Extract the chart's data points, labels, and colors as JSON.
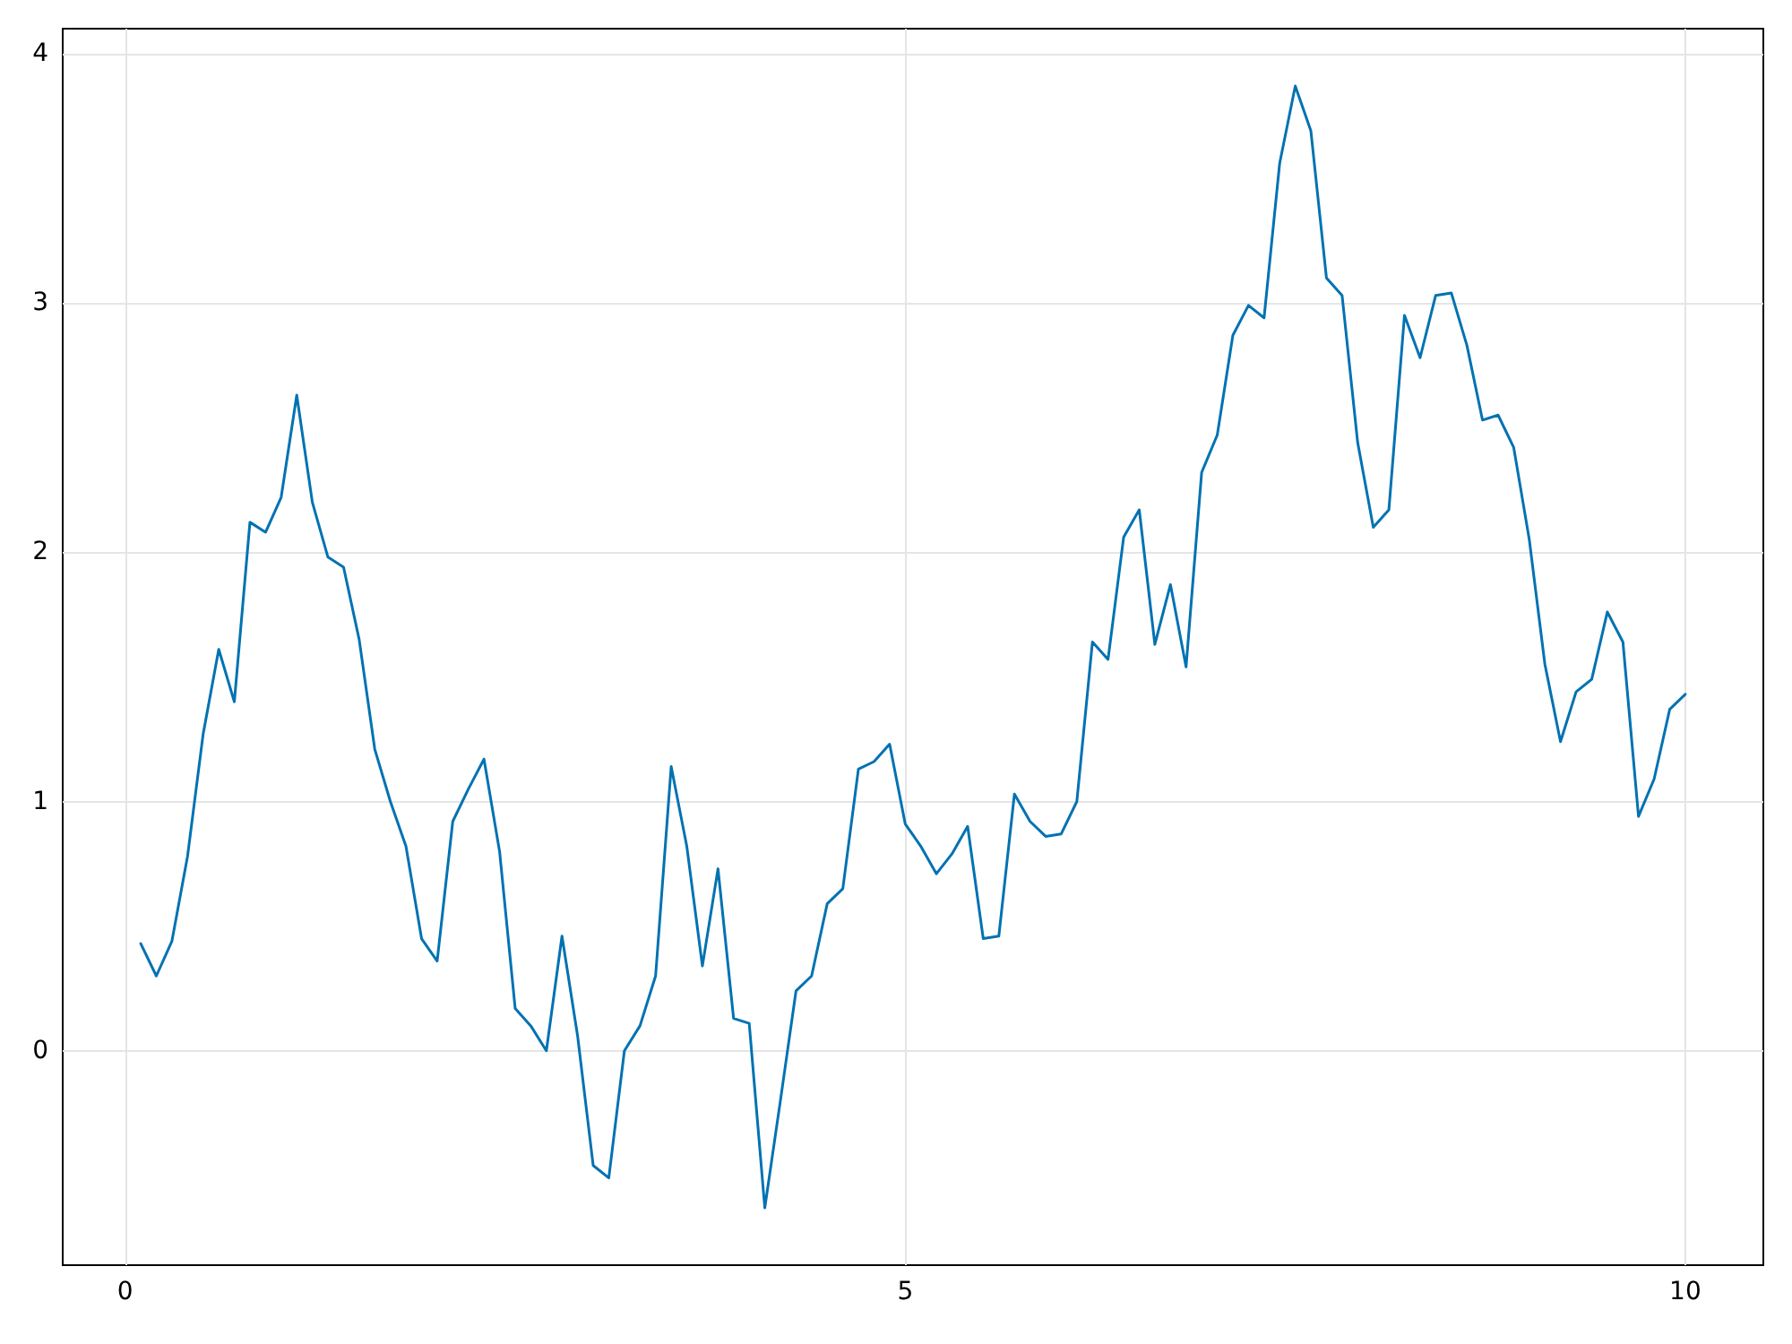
{
  "chart_data": {
    "type": "line",
    "x": [
      0.1,
      0.2,
      0.3,
      0.4,
      0.5,
      0.6,
      0.7,
      0.8,
      0.9,
      1.0,
      1.1,
      1.2,
      1.3,
      1.4,
      1.5,
      1.6,
      1.7,
      1.8,
      1.9,
      2.0,
      2.1,
      2.2,
      2.3,
      2.4,
      2.5,
      2.6,
      2.7,
      2.8,
      2.9,
      3.0,
      3.1,
      3.2,
      3.3,
      3.4,
      3.5,
      3.6,
      3.7,
      3.8,
      3.9,
      4.0,
      4.1,
      4.2,
      4.3,
      4.4,
      4.5,
      4.6,
      4.7,
      4.8,
      4.9,
      5.0,
      5.1,
      5.2,
      5.3,
      5.4,
      5.5,
      5.6,
      5.7,
      5.8,
      5.9,
      6.0,
      6.1,
      6.2,
      6.3,
      6.4,
      6.5,
      6.6,
      6.7,
      6.8,
      6.9,
      7.0,
      7.1,
      7.2,
      7.3,
      7.4,
      7.5,
      7.6,
      7.7,
      7.8,
      7.9,
      8.0,
      8.1,
      8.2,
      8.3,
      8.4,
      8.5,
      8.6,
      8.7,
      8.8,
      8.9,
      9.0,
      9.1,
      9.2,
      9.3,
      9.4,
      9.5,
      9.6,
      9.7,
      9.8,
      9.9,
      10.0
    ],
    "series": [
      {
        "color": "#0072b2",
        "values": [
          0.43,
          0.3,
          0.44,
          0.78,
          1.27,
          1.61,
          1.4,
          2.12,
          2.08,
          2.22,
          2.63,
          2.2,
          1.98,
          1.94,
          1.65,
          1.21,
          1.0,
          0.82,
          0.45,
          0.36,
          0.92,
          1.05,
          1.17,
          0.8,
          0.17,
          0.1,
          0.0,
          0.46,
          0.06,
          -0.46,
          -0.51,
          0.0,
          0.1,
          0.3,
          1.14,
          0.82,
          0.34,
          0.73,
          0.13,
          0.11,
          -0.63,
          -0.2,
          0.24,
          0.3,
          0.59,
          0.65,
          1.13,
          1.16,
          1.23,
          0.91,
          0.82,
          0.71,
          0.79,
          0.9,
          0.45,
          0.46,
          1.03,
          0.92,
          0.86,
          0.87,
          1.0,
          1.64,
          1.57,
          2.06,
          2.17,
          1.63,
          1.87,
          1.54,
          2.32,
          2.47,
          2.87,
          2.99,
          2.94,
          3.56,
          3.87,
          3.69,
          3.1,
          3.03,
          2.44,
          2.1,
          2.17,
          2.95,
          2.78,
          3.03,
          3.04,
          2.83,
          2.53,
          2.55,
          2.42,
          2.05,
          1.55,
          1.24,
          1.44,
          1.49,
          1.76,
          1.64,
          0.94,
          1.09,
          1.37,
          1.43
        ]
      }
    ],
    "xlim": [
      -0.4,
      10.5
    ],
    "xticks": [
      0,
      5,
      10
    ],
    "ylim": [
      -0.86,
      4.1
    ],
    "yticks": [
      0,
      1,
      2,
      3,
      4
    ],
    "grid": true,
    "marker": "none",
    "line_style": "solid"
  }
}
